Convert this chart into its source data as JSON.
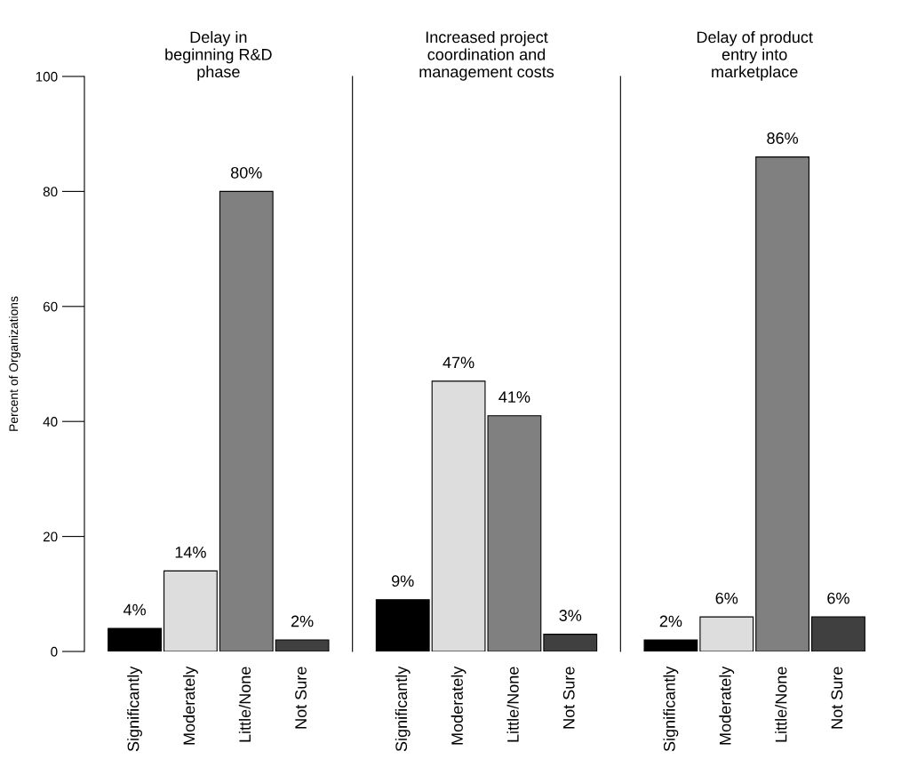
{
  "chart_data": [
    {
      "type": "bar",
      "title": "Delay in\nbeginning R&D\nphase",
      "ylabel": "Percent of Organizations",
      "categories": [
        "Significantly",
        "Moderately",
        "Little/None",
        "Not Sure"
      ],
      "values": [
        4,
        14,
        80,
        2
      ],
      "colors": [
        "#000000",
        "#dddddd",
        "#808080",
        "#404040"
      ],
      "value_labels": [
        "4%",
        "14%",
        "80%",
        "2%"
      ],
      "ylim": [
        0,
        100
      ],
      "yticks": [
        0,
        20,
        40,
        60,
        80,
        100
      ],
      "grid": false,
      "legend": false
    },
    {
      "type": "bar",
      "title": "Increased project\ncoordination and\nmanagement costs",
      "categories": [
        "Significantly",
        "Moderately",
        "Little/None",
        "Not Sure"
      ],
      "values": [
        9,
        47,
        41,
        3
      ],
      "colors": [
        "#000000",
        "#dddddd",
        "#808080",
        "#404040"
      ],
      "value_labels": [
        "9%",
        "47%",
        "41%",
        "3%"
      ],
      "ylim": [
        0,
        100
      ],
      "tick_labels": "x",
      "grid": false,
      "legend": false
    },
    {
      "type": "bar",
      "title": "Delay of product\nentry into\nmarketplace",
      "categories": [
        "Significantly",
        "Moderately",
        "Little/None",
        "Not Sure"
      ],
      "values": [
        2,
        6,
        86,
        6
      ],
      "colors": [
        "#000000",
        "#dddddd",
        "#808080",
        "#404040"
      ],
      "value_labels": [
        "2%",
        "6%",
        "86%",
        "6%"
      ],
      "ylim": [
        0,
        100
      ],
      "tick_labels": "x",
      "grid": false,
      "legend": false
    }
  ]
}
